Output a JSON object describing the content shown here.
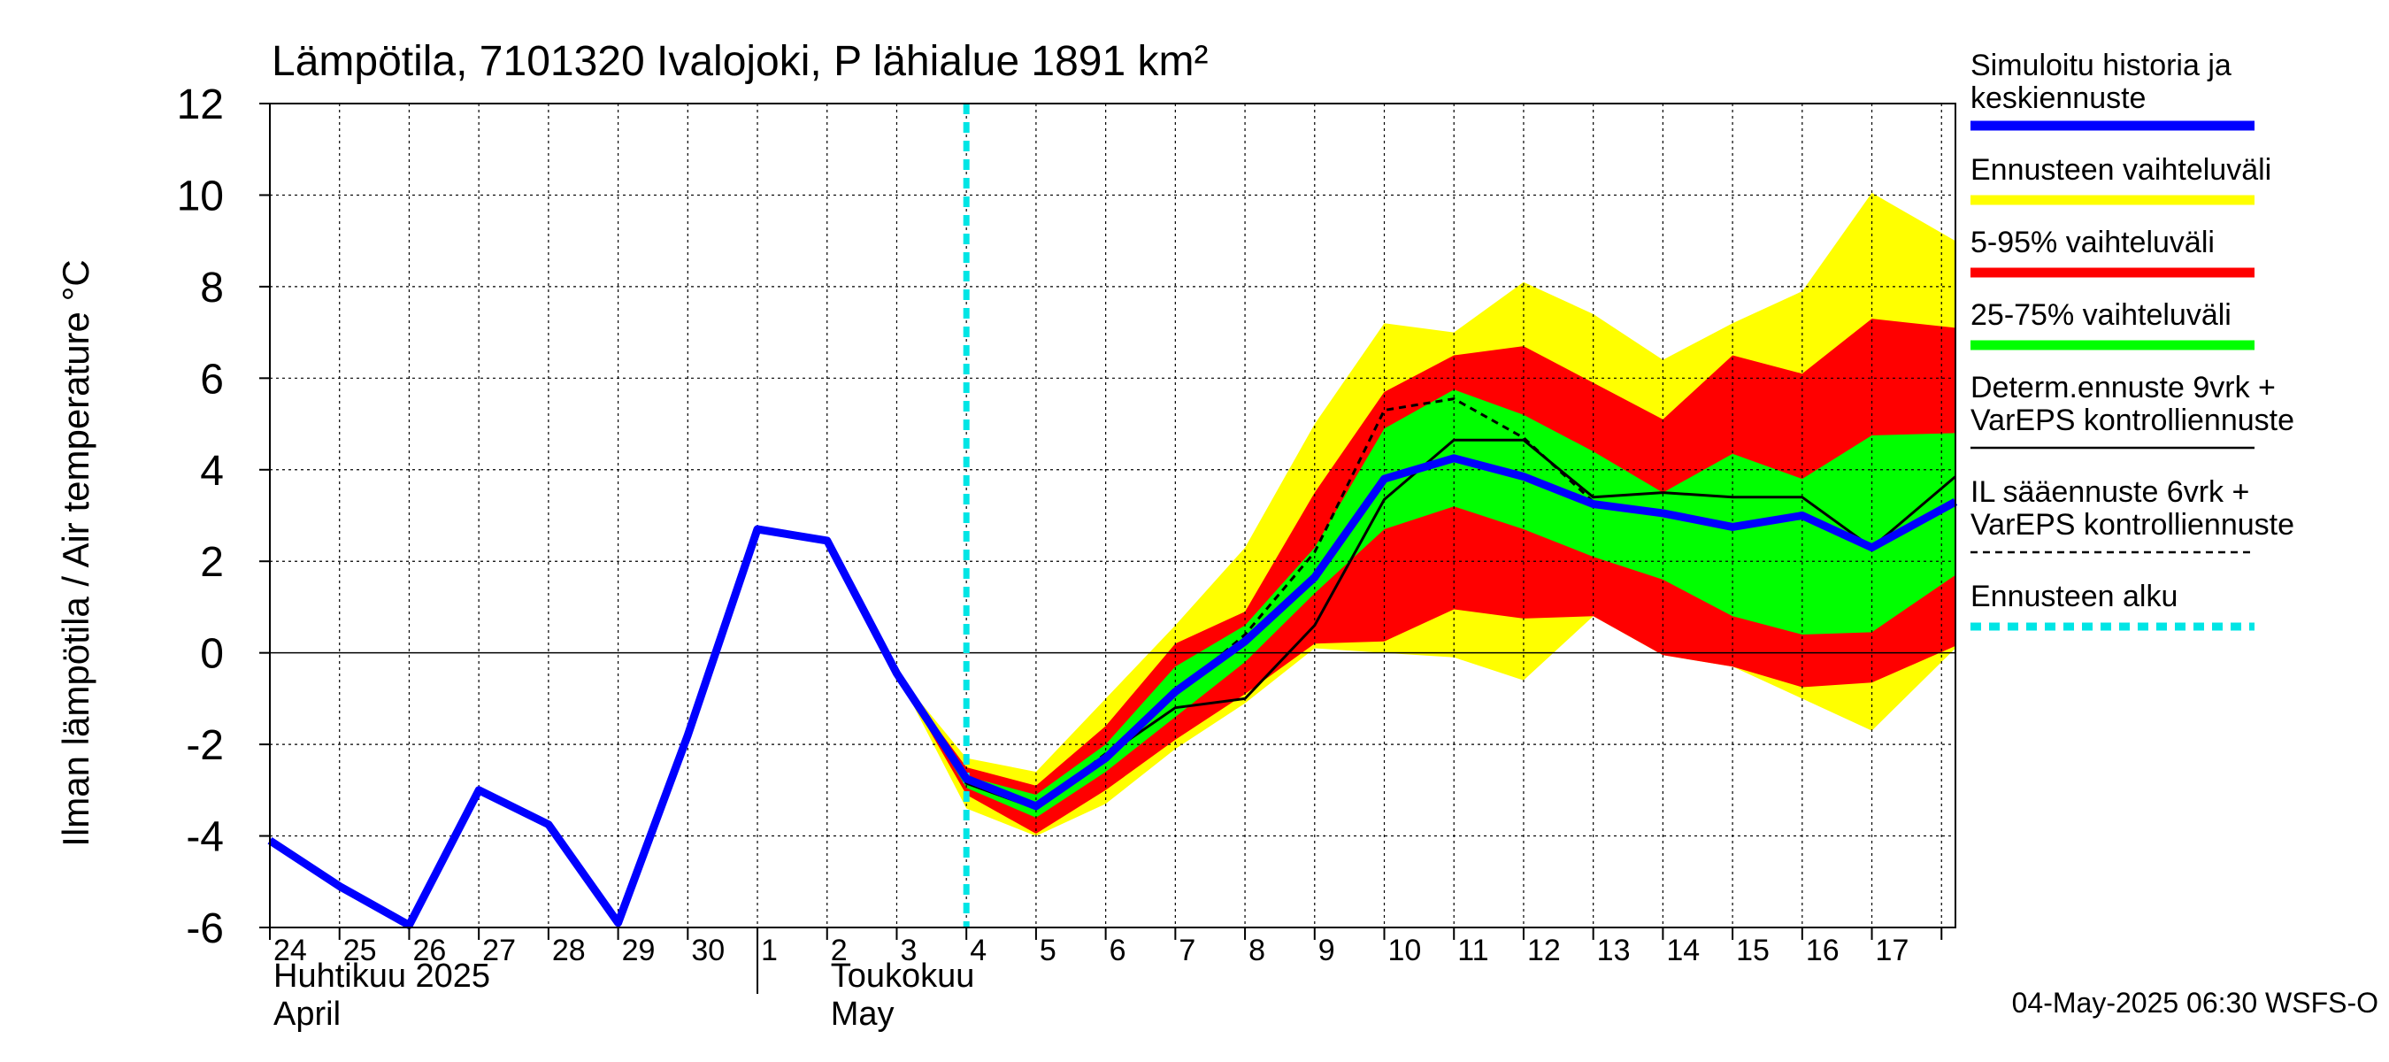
{
  "chart_data": {
    "type": "area",
    "title": "Lämpötila, 7101320 Ivalojoki, P lähialue 1891 km²",
    "ylabel": "Ilman lämpötila / Air temperature    °C",
    "xlabel": "",
    "ylim": [
      -6,
      12
    ],
    "yticks": [
      -6,
      -4,
      -2,
      0,
      2,
      4,
      6,
      8,
      10,
      12
    ],
    "ytick_labels": [
      "-6",
      "-4",
      "-2",
      "0",
      "2",
      "4",
      "6",
      "8",
      "10",
      "12"
    ],
    "xlim": [
      0,
      24.2
    ],
    "day_labels": [
      "24",
      "25",
      "26",
      "27",
      "28",
      "29",
      "30",
      "1",
      "2",
      "3",
      "4",
      "5",
      "6",
      "7",
      "8",
      "9",
      "10",
      "11",
      "12",
      "13",
      "14",
      "15",
      "16",
      "17"
    ],
    "month_labels": [
      {
        "line1": "Huhtikuu  2025",
        "line2": "April",
        "day": 0
      },
      {
        "line1": "Toukokuu",
        "line2": "May",
        "day": 8
      }
    ],
    "month_divider_day": 7,
    "forecast_start_day": 10,
    "footer": "04-May-2025 06:30 WSFS-O",
    "colors": {
      "history": "#0000ff",
      "ens_range": "#ffff00",
      "p5_95": "#ff0000",
      "p25_75": "#00ff00",
      "determ": "#000000",
      "il_forecast": "#000000",
      "forecast_start": "#00e5e5",
      "grid": "#000000"
    },
    "series": [
      {
        "name": "Simuloitu historia ja keskiennuste",
        "key": "history",
        "x": [
          0,
          1,
          2,
          3,
          4,
          5,
          6,
          7,
          8,
          9,
          10,
          11,
          12,
          13,
          14,
          15,
          16,
          17,
          18,
          19,
          20,
          21,
          22,
          23,
          24.2
        ],
        "values": [
          -4.1,
          -5.1,
          -5.95,
          -3.0,
          -3.75,
          -5.9,
          -1.8,
          2.7,
          2.45,
          -0.45,
          -2.75,
          -3.35,
          -2.3,
          -0.85,
          0.25,
          1.65,
          3.8,
          4.25,
          3.85,
          3.25,
          3.05,
          2.75,
          3.0,
          2.3,
          3.3
        ]
      },
      {
        "name": "Ennusteen vaihteluväli",
        "key": "ens_range",
        "x": [
          9,
          10,
          11,
          12,
          13,
          14,
          15,
          16,
          17,
          18,
          19,
          20,
          21,
          22,
          23,
          24.2
        ],
        "upper": [
          -0.45,
          -2.3,
          -2.6,
          -1.0,
          0.6,
          2.3,
          5.0,
          7.2,
          7.0,
          8.1,
          7.4,
          6.4,
          7.2,
          7.9,
          10.05,
          9.0
        ],
        "lower": [
          -0.45,
          -3.4,
          -4.0,
          -3.3,
          -2.1,
          -1.1,
          0.1,
          0.0,
          -0.1,
          -0.6,
          0.8,
          -0.05,
          -0.3,
          -1.0,
          -1.7,
          0.1
        ]
      },
      {
        "name": "5-95% vaihteluväli",
        "key": "p5_95",
        "x": [
          9,
          10,
          11,
          12,
          13,
          14,
          15,
          16,
          17,
          18,
          19,
          20,
          21,
          22,
          23,
          24.2
        ],
        "upper": [
          -0.45,
          -2.5,
          -2.9,
          -1.6,
          0.2,
          0.9,
          3.5,
          5.7,
          6.5,
          6.7,
          5.9,
          5.1,
          6.5,
          6.1,
          7.3,
          7.1
        ],
        "lower": [
          -0.45,
          -3.1,
          -3.95,
          -3.0,
          -1.9,
          -0.9,
          0.2,
          0.25,
          0.95,
          0.75,
          0.8,
          -0.05,
          -0.3,
          -0.75,
          -0.65,
          0.15
        ]
      },
      {
        "name": "25-75% vaihteluväli",
        "key": "p25_75",
        "x": [
          9,
          10,
          11,
          12,
          13,
          14,
          15,
          16,
          17,
          18,
          19,
          20,
          21,
          22,
          23,
          24.2
        ],
        "upper": [
          -0.45,
          -2.7,
          -3.1,
          -2.0,
          -0.3,
          0.6,
          2.3,
          4.9,
          5.75,
          5.2,
          4.4,
          3.5,
          4.35,
          3.8,
          4.75,
          4.8
        ],
        "lower": [
          -0.45,
          -2.95,
          -3.6,
          -2.6,
          -1.4,
          -0.2,
          1.3,
          2.7,
          3.2,
          2.7,
          2.1,
          1.6,
          0.8,
          0.4,
          0.45,
          1.7
        ]
      },
      {
        "name": "Determ.ennuste 9vrk + VarEPS kontrolliennuste",
        "key": "determ",
        "x": [
          9,
          10,
          11,
          12,
          13,
          14,
          15,
          16,
          17,
          18,
          19,
          20,
          21,
          22,
          23,
          24.2
        ],
        "values": [
          -0.45,
          -2.85,
          -3.4,
          -2.25,
          -1.2,
          -1.0,
          0.6,
          3.35,
          4.65,
          4.65,
          3.4,
          3.5,
          3.4,
          3.4,
          2.3,
          3.85
        ]
      },
      {
        "name": "IL sääennuste 6vrk + VarEPS kontrolliennuste",
        "key": "il_forecast",
        "x": [
          9,
          10,
          11,
          12,
          13,
          14,
          15,
          16,
          17,
          18,
          19,
          20,
          21,
          22,
          23,
          24.2
        ],
        "values": [
          -0.45,
          -2.8,
          -3.4,
          -2.2,
          -0.9,
          0.4,
          2.2,
          5.3,
          5.55,
          4.7,
          3.3,
          3.1,
          2.8,
          3.0,
          2.3,
          3.3
        ]
      }
    ],
    "legend": [
      {
        "line1": "Simuloitu historia ja",
        "line2": "keskiennuste",
        "key": "history",
        "style": "thick"
      },
      {
        "line1": "Ennusteen vaihteluväli",
        "line2": "",
        "key": "ens_range",
        "style": "thick"
      },
      {
        "line1": "5-95% vaihteluväli",
        "line2": "",
        "key": "p5_95",
        "style": "thick"
      },
      {
        "line1": "25-75% vaihteluväli",
        "line2": "",
        "key": "p25_75",
        "style": "thick"
      },
      {
        "line1": "Determ.ennuste 9vrk +",
        "line2": "VarEPS kontrolliennuste",
        "key": "determ",
        "style": "thin"
      },
      {
        "line1": "IL sääennuste 6vrk  +",
        "line2": "  VarEPS kontrolliennuste",
        "key": "il_forecast",
        "style": "dashed"
      },
      {
        "line1": "Ennusteen alku",
        "line2": "",
        "key": "forecast_start",
        "style": "cyan-dotted"
      }
    ],
    "legend_position": "right"
  }
}
